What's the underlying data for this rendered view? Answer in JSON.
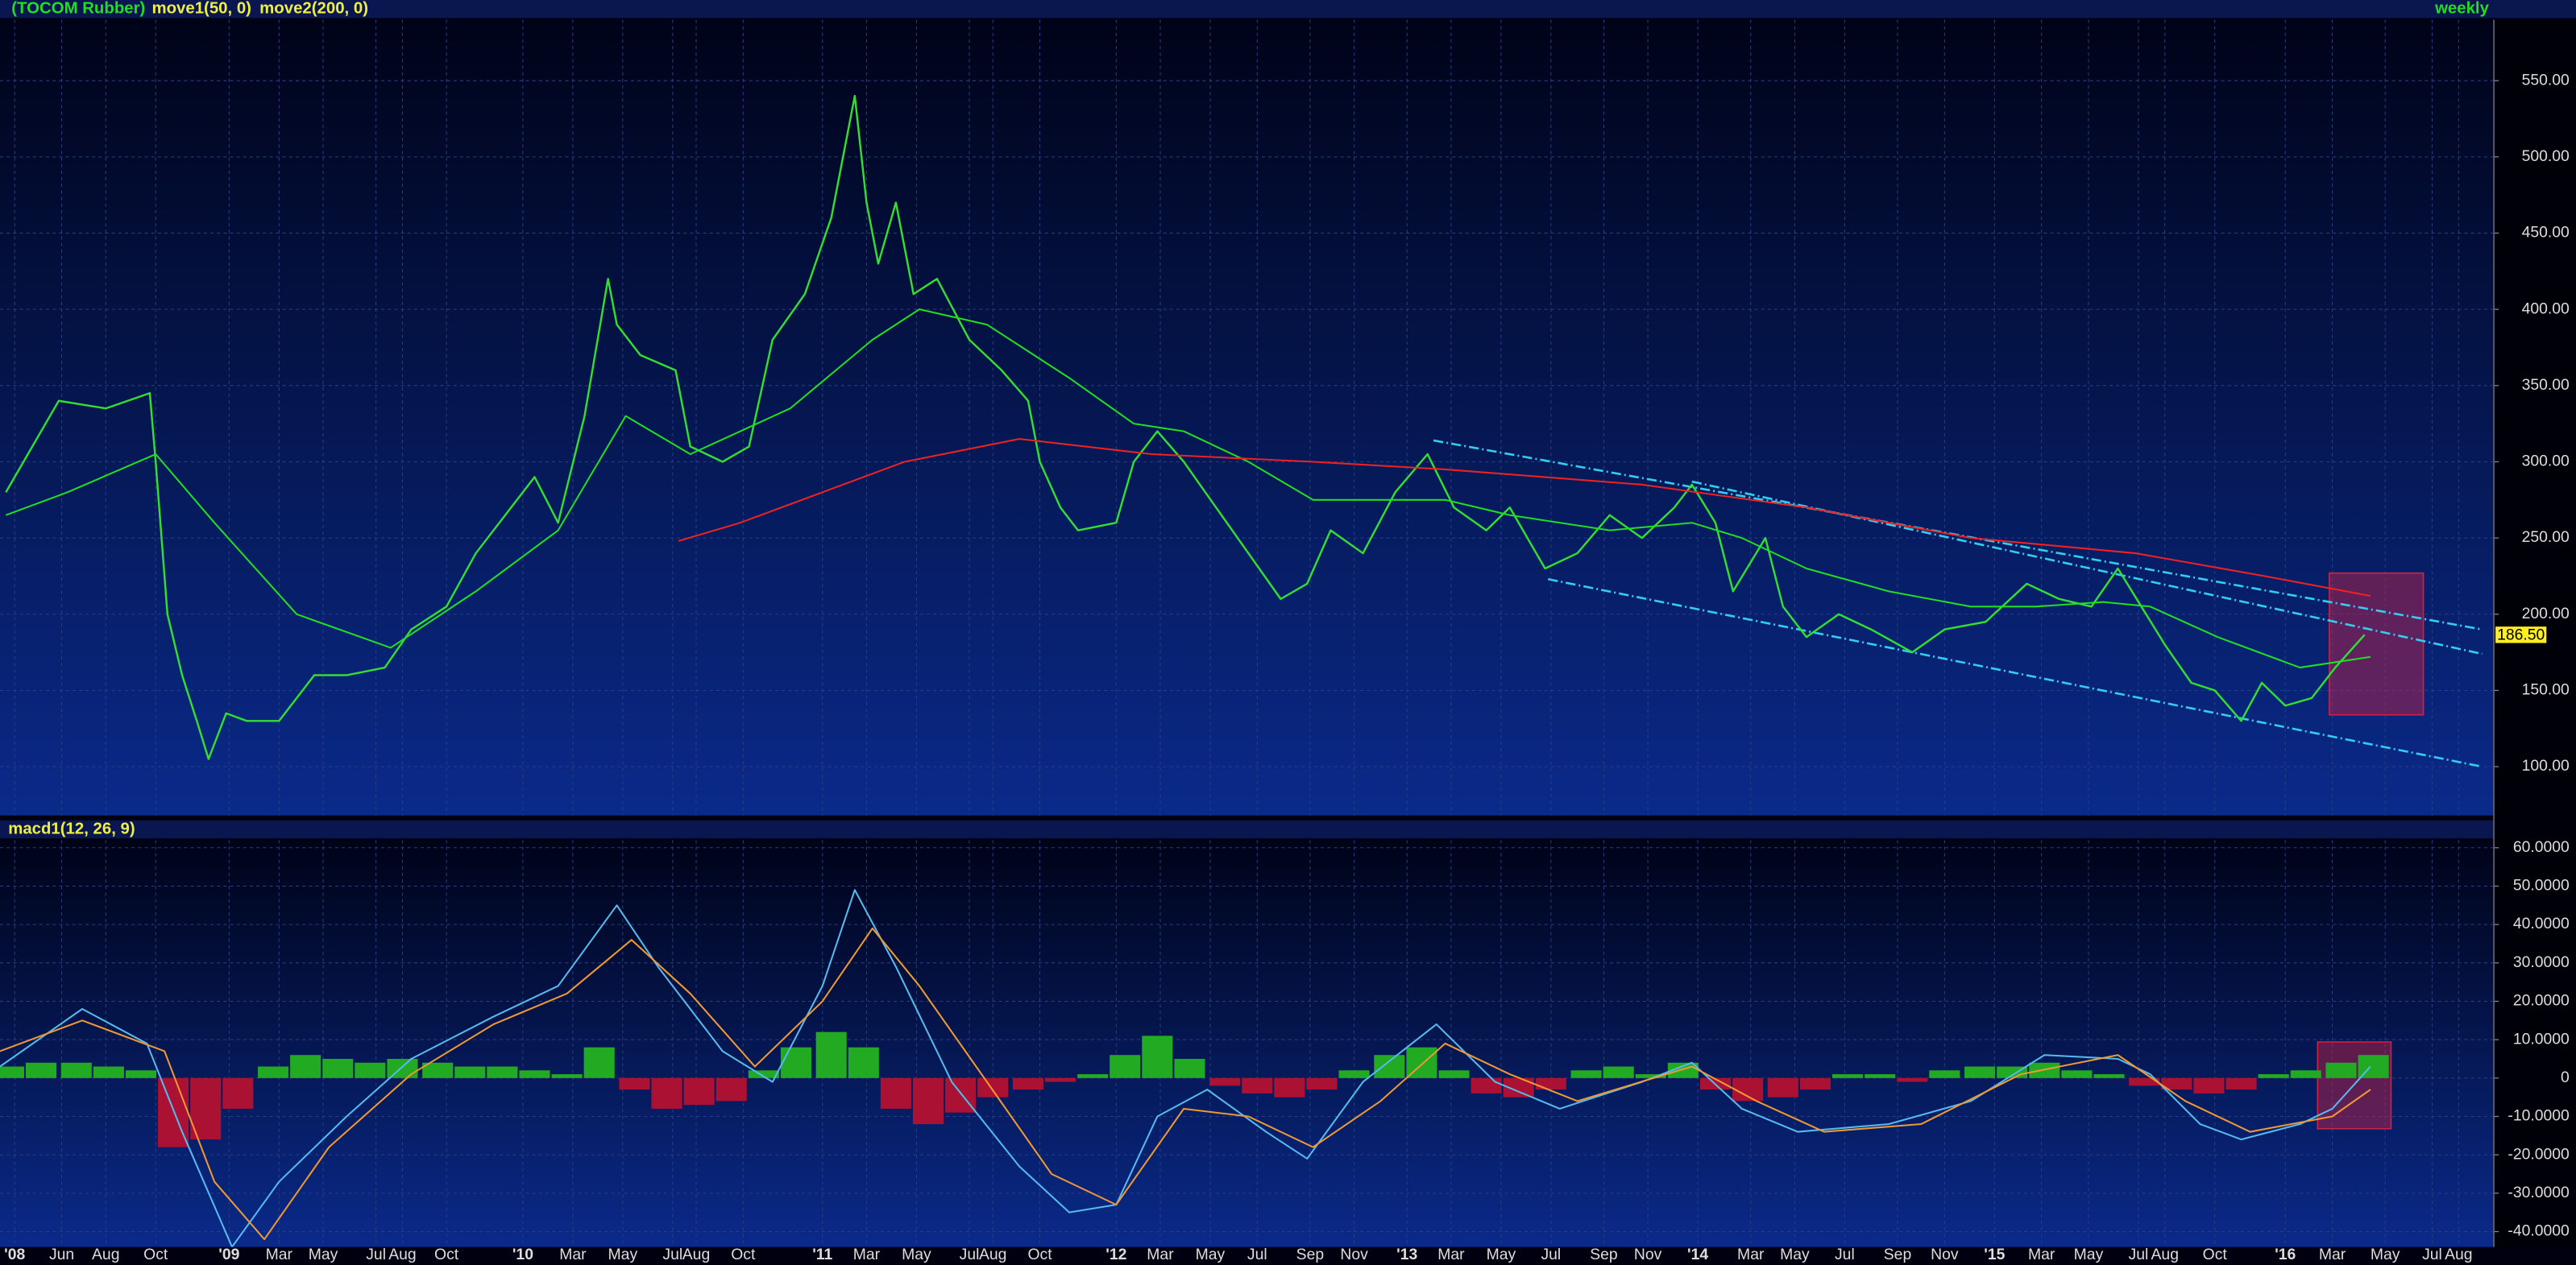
{
  "chart_data": [
    {
      "type": "line",
      "title": "(TOCOM Rubber)",
      "period": "weekly",
      "xlim": [
        2008.23,
        2016.72
      ],
      "ylim": [
        68,
        590
      ],
      "yticks": [
        {
          "value": 100,
          "label": "100.00"
        },
        {
          "value": 150,
          "label": "150.00"
        },
        {
          "value": 200,
          "label": "200.00"
        },
        {
          "value": 250,
          "label": "250.00"
        },
        {
          "value": 300,
          "label": "300.00"
        },
        {
          "value": 350,
          "label": "350.00"
        },
        {
          "value": 400,
          "label": "400.00"
        },
        {
          "value": 450,
          "label": "450.00"
        },
        {
          "value": 500,
          "label": "500.00"
        },
        {
          "value": 550,
          "label": "550.00"
        }
      ],
      "grid": true,
      "series": [
        {
          "color": "#33dd33",
          "kind": "price",
          "x": [
            2008.25,
            2008.43,
            2008.59,
            2008.74,
            2008.76,
            2008.8,
            2008.85,
            2008.9,
            2008.94,
            2009.0,
            2009.07,
            2009.18,
            2009.3,
            2009.41,
            2009.54,
            2009.63,
            2009.75,
            2009.85,
            2009.97,
            2010.05,
            2010.13,
            2010.22,
            2010.3,
            2010.33,
            2010.41,
            2010.53,
            2010.58,
            2010.69,
            2010.78,
            2010.86,
            2010.97,
            2011.06,
            2011.14,
            2011.18,
            2011.22,
            2011.28,
            2011.34,
            2011.42,
            2011.53,
            2011.64,
            2011.73,
            2011.77,
            2011.84,
            2011.9,
            2012.03,
            2012.09,
            2012.17,
            2012.26,
            2012.37,
            2012.48,
            2012.59,
            2012.68,
            2012.76,
            2012.87,
            2012.98,
            2013.09,
            2013.18,
            2013.29,
            2013.37,
            2013.49,
            2013.6,
            2013.71,
            2013.82,
            2013.93,
            2013.99,
            2014.07,
            2014.13,
            2014.24,
            2014.3,
            2014.38,
            2014.49,
            2014.6,
            2014.74,
            2014.85,
            2014.99,
            2015.13,
            2015.24,
            2015.35,
            2015.44,
            2015.52,
            2015.6,
            2015.69,
            2015.77,
            2015.86,
            2015.93,
            2016.01,
            2016.1,
            2016.18,
            2016.28
          ],
          "values": [
            280,
            340,
            335,
            345,
            300,
            200,
            160,
            130,
            105,
            135,
            130,
            130,
            160,
            160,
            165,
            190,
            205,
            240,
            270,
            290,
            260,
            330,
            420,
            390,
            370,
            360,
            310,
            300,
            310,
            380,
            410,
            460,
            540,
            470,
            430,
            470,
            410,
            420,
            380,
            360,
            340,
            300,
            270,
            255,
            260,
            300,
            320,
            300,
            270,
            240,
            210,
            220,
            255,
            240,
            280,
            305,
            270,
            255,
            270,
            230,
            240,
            265,
            250,
            270,
            285,
            260,
            215,
            250,
            205,
            185,
            200,
            190,
            175,
            190,
            195,
            220,
            210,
            205,
            230,
            205,
            180,
            155,
            150,
            130,
            155,
            140,
            145,
            165,
            186.5
          ]
        },
        {
          "name": "move1(50, 0)",
          "color": "#22dd22",
          "x": [
            2008.25,
            2008.46,
            2008.76,
            2008.96,
            2009.24,
            2009.56,
            2009.85,
            2010.13,
            2010.36,
            2010.58,
            2010.92,
            2011.2,
            2011.36,
            2011.59,
            2011.87,
            2012.09,
            2012.26,
            2012.48,
            2012.7,
            2012.98,
            2013.15,
            2013.37,
            2013.71,
            2013.99,
            2014.16,
            2014.38,
            2014.66,
            2014.94,
            2015.16,
            2015.39,
            2015.55,
            2015.78,
            2016.06,
            2016.3
          ],
          "values": [
            265,
            280,
            305,
            260,
            200,
            178,
            215,
            255,
            330,
            305,
            335,
            380,
            400,
            390,
            355,
            325,
            320,
            300,
            275,
            275,
            275,
            265,
            255,
            260,
            250,
            230,
            215,
            205,
            205,
            208,
            205,
            185,
            165,
            172
          ]
        },
        {
          "name": "move2(200, 0)",
          "color": "#ee2222",
          "x": [
            2010.54,
            2010.75,
            2011.03,
            2011.31,
            2011.7,
            2012.15,
            2012.7,
            2013.15,
            2013.82,
            2014.38,
            2014.94,
            2015.5,
            2015.94,
            2016.3
          ],
          "values": [
            248,
            260,
            280,
            300,
            315,
            305,
            300,
            295,
            285,
            270,
            250,
            240,
            225,
            212
          ]
        }
      ],
      "trendline_color": "#33ccee",
      "trendlines": [
        {
          "x": [
            2013.11,
            2016.68
          ],
          "values": [
            314,
            190
          ]
        },
        {
          "x": [
            2013.99,
            2016.68
          ],
          "values": [
            287,
            174
          ]
        },
        {
          "x": [
            2013.5,
            2016.68
          ],
          "values": [
            223,
            100
          ]
        }
      ],
      "highlight": {
        "x": [
          2016.16,
          2016.48
        ],
        "values": [
          227,
          134
        ],
        "color": "#cc2244"
      },
      "last_price": {
        "value": 186.5,
        "label": "186.50"
      }
    },
    {
      "type": "macd",
      "title": "macd1(12, 26, 9)",
      "xlim": [
        2008.23,
        2016.72
      ],
      "ylim": [
        -44,
        62
      ],
      "yticks": [
        {
          "value": -40,
          "label": "-40.0000"
        },
        {
          "value": -30,
          "label": "-30.0000"
        },
        {
          "value": -20,
          "label": "-20.0000"
        },
        {
          "value": -10,
          "label": "-10.0000"
        },
        0,
        {
          "value": 10,
          "label": "10.0000"
        },
        {
          "value": 20,
          "label": "20.0000"
        },
        {
          "value": 30,
          "label": "30.0000"
        },
        {
          "value": 40,
          "label": "40.0000"
        },
        {
          "value": 50,
          "label": "50.0000"
        },
        {
          "value": 60,
          "label": "60.0000"
        }
      ],
      "grid": true,
      "xticks": [
        {
          "value": 2008.28,
          "label": "'08"
        },
        {
          "value": 2008.44,
          "label": "Jun"
        },
        {
          "value": 2008.59,
          "label": "Aug"
        },
        {
          "value": 2008.76,
          "label": "Oct"
        },
        {
          "value": 2009.01,
          "label": "'09"
        },
        {
          "value": 2009.18,
          "label": "Mar"
        },
        {
          "value": 2009.33,
          "label": "May"
        },
        {
          "value": 2009.51,
          "label": "Jul"
        },
        {
          "value": 2009.6,
          "label": "Aug"
        },
        {
          "value": 2009.75,
          "label": "Oct"
        },
        {
          "value": 2010.01,
          "label": "'10"
        },
        {
          "value": 2010.18,
          "label": "Mar"
        },
        {
          "value": 2010.35,
          "label": "May"
        },
        {
          "value": 2010.52,
          "label": "Jul"
        },
        {
          "value": 2010.6,
          "label": "Aug"
        },
        {
          "value": 2010.76,
          "label": "Oct"
        },
        {
          "value": 2011.03,
          "label": "'11"
        },
        {
          "value": 2011.18,
          "label": "Mar"
        },
        {
          "value": 2011.35,
          "label": "May"
        },
        {
          "value": 2011.53,
          "label": "Jul"
        },
        {
          "value": 2011.61,
          "label": "Aug"
        },
        {
          "value": 2011.77,
          "label": "Oct"
        },
        {
          "value": 2012.03,
          "label": "'12"
        },
        {
          "value": 2012.18,
          "label": "Mar"
        },
        {
          "value": 2012.35,
          "label": "May"
        },
        {
          "value": 2012.51,
          "label": "Jul"
        },
        {
          "value": 2012.69,
          "label": "Sep"
        },
        {
          "value": 2012.84,
          "label": "Nov"
        },
        {
          "value": 2013.02,
          "label": "'13"
        },
        {
          "value": 2013.17,
          "label": "Mar"
        },
        {
          "value": 2013.34,
          "label": "May"
        },
        {
          "value": 2013.51,
          "label": "Jul"
        },
        {
          "value": 2013.69,
          "label": "Sep"
        },
        {
          "value": 2013.84,
          "label": "Nov"
        },
        {
          "value": 2014.01,
          "label": "'14"
        },
        {
          "value": 2014.19,
          "label": "Mar"
        },
        {
          "value": 2014.34,
          "label": "May"
        },
        {
          "value": 2014.51,
          "label": "Jul"
        },
        {
          "value": 2014.69,
          "label": "Sep"
        },
        {
          "value": 2014.85,
          "label": "Nov"
        },
        {
          "value": 2015.02,
          "label": "'15"
        },
        {
          "value": 2015.18,
          "label": "Mar"
        },
        {
          "value": 2015.34,
          "label": "May"
        },
        {
          "value": 2015.51,
          "label": "Jul"
        },
        {
          "value": 2015.6,
          "label": "Aug"
        },
        {
          "value": 2015.77,
          "label": "Oct"
        },
        {
          "value": 2016.01,
          "label": "'16"
        },
        {
          "value": 2016.17,
          "label": "Mar"
        },
        {
          "value": 2016.35,
          "label": "May"
        },
        {
          "value": 2016.51,
          "label": "Jul"
        },
        {
          "value": 2016.6,
          "label": "Aug"
        }
      ],
      "series": [
        {
          "color": "#55bbee",
          "x": [
            2008.23,
            2008.51,
            2008.73,
            2008.85,
            2009.02,
            2009.18,
            2009.41,
            2009.63,
            2009.91,
            2010.13,
            2010.33,
            2010.47,
            2010.69,
            2010.86,
            2011.03,
            2011.14,
            2011.28,
            2011.47,
            2011.7,
            2011.87,
            2012.03,
            2012.17,
            2012.34,
            2012.54,
            2012.68,
            2012.87,
            2013.12,
            2013.32,
            2013.54,
            2013.82,
            2013.99,
            2014.16,
            2014.35,
            2014.66,
            2014.94,
            2015.19,
            2015.44,
            2015.55,
            2015.72,
            2015.86,
            2016.06,
            2016.17,
            2016.3
          ],
          "values": [
            3,
            18,
            9,
            -14,
            -44,
            -27,
            -10,
            5,
            16,
            24,
            45,
            29,
            7,
            -1,
            24,
            49,
            29,
            -1,
            -23,
            -35,
            -33,
            -10,
            -3,
            -14,
            -21,
            -1,
            14,
            -1,
            -8,
            -1,
            4,
            -8,
            -14,
            -12,
            -6,
            6,
            5,
            1,
            -12,
            -16,
            -12,
            -8,
            3
          ]
        },
        {
          "color": "#ee9933",
          "x": [
            2008.23,
            2008.51,
            2008.79,
            2008.96,
            2009.13,
            2009.35,
            2009.63,
            2009.91,
            2010.16,
            2010.38,
            2010.58,
            2010.8,
            2011.03,
            2011.2,
            2011.36,
            2011.59,
            2011.81,
            2012.03,
            2012.26,
            2012.48,
            2012.7,
            2012.93,
            2013.15,
            2013.37,
            2013.6,
            2013.99,
            2014.21,
            2014.44,
            2014.77,
            2015.11,
            2015.44,
            2015.67,
            2015.89,
            2016.17,
            2016.3
          ],
          "values": [
            7,
            15,
            7,
            -27,
            -42,
            -18,
            1,
            14,
            22,
            36,
            22,
            3,
            20,
            39,
            24,
            -1,
            -25,
            -33,
            -8,
            -10,
            -18,
            -6,
            9,
            1,
            -6,
            3,
            -6,
            -14,
            -12,
            1,
            6,
            -6,
            -14,
            -10,
            -3
          ]
        }
      ],
      "histogram": {
        "up_color": "#22aa22",
        "down_color": "#aa1133",
        "x": [
          2008.26,
          2008.37,
          2008.49,
          2008.6,
          2008.71,
          2008.82,
          2008.93,
          2009.04,
          2009.16,
          2009.27,
          2009.38,
          2009.49,
          2009.6,
          2009.72,
          2009.83,
          2009.94,
          2010.05,
          2010.16,
          2010.27,
          2010.39,
          2010.5,
          2010.61,
          2010.72,
          2010.83,
          2010.94,
          2011.06,
          2011.17,
          2011.28,
          2011.39,
          2011.5,
          2011.61,
          2011.73,
          2011.84,
          2011.95,
          2012.06,
          2012.17,
          2012.28,
          2012.4,
          2012.51,
          2012.62,
          2012.73,
          2012.84,
          2012.96,
          2013.07,
          2013.18,
          2013.29,
          2013.4,
          2013.51,
          2013.63,
          2013.74,
          2013.85,
          2013.96,
          2014.07,
          2014.18,
          2014.3,
          2014.41,
          2014.52,
          2014.63,
          2014.74,
          2014.85,
          2014.97,
          2015.08,
          2015.19,
          2015.3,
          2015.41,
          2015.53,
          2015.64,
          2015.75,
          2015.86,
          2015.97,
          2016.08,
          2016.2,
          2016.31
        ],
        "values": [
          3,
          4,
          4,
          3,
          2,
          -18,
          -16,
          -8,
          3,
          6,
          5,
          4,
          5,
          4,
          3,
          3,
          2,
          1,
          8,
          -3,
          -8,
          -7,
          -6,
          2,
          8,
          12,
          8,
          -8,
          -12,
          -9,
          -5,
          -3,
          -1,
          1,
          6,
          11,
          5,
          -2,
          -4,
          -5,
          -3,
          2,
          6,
          8,
          2,
          -4,
          -5,
          -3,
          2,
          3,
          1,
          4,
          -3,
          -6,
          -5,
          -3,
          1,
          1,
          -1,
          2,
          3,
          3,
          4,
          2,
          1,
          -2,
          -3,
          -4,
          -3,
          1,
          2,
          4,
          6
        ]
      },
      "highlight": {
        "x": [
          2016.12,
          2016.37
        ],
        "values": [
          9.4,
          -13.2
        ],
        "color": "#cc2244"
      }
    }
  ]
}
